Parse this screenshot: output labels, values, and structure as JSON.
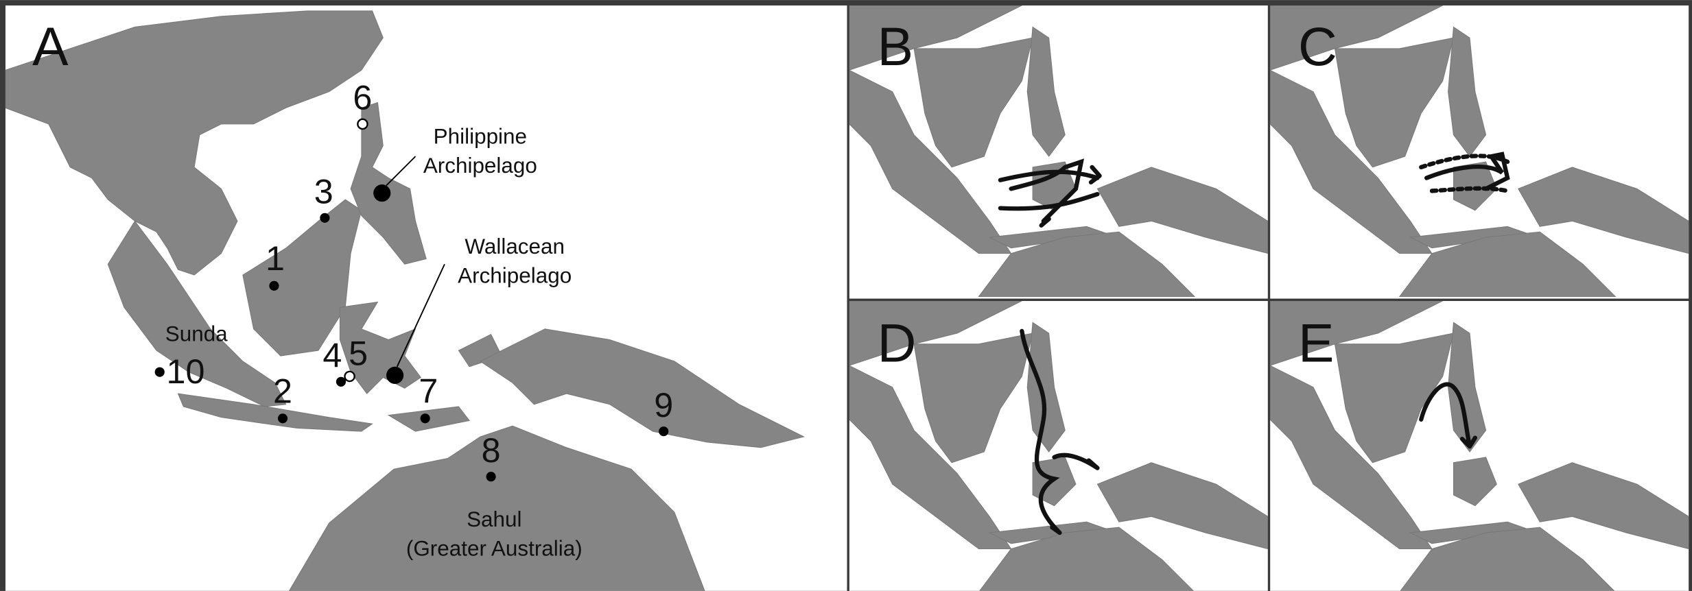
{
  "panels": [
    {
      "label": "A"
    },
    {
      "label": "B"
    },
    {
      "label": "C"
    },
    {
      "label": "D"
    },
    {
      "label": "E"
    }
  ],
  "sites": [
    {
      "label": "1"
    },
    {
      "label": "2"
    },
    {
      "label": "3"
    },
    {
      "label": "4"
    },
    {
      "label": "5"
    },
    {
      "label": "6"
    },
    {
      "label": "7"
    },
    {
      "label": "8"
    },
    {
      "label": "9"
    },
    {
      "label": "10"
    }
  ],
  "regions": {
    "philippine": [
      "Philippine",
      "Archipelago"
    ],
    "wallacean": [
      "Wallacean",
      "Archipelago"
    ],
    "sunda": "Sunda",
    "sahul": [
      "Sahul",
      "(Greater Australia)"
    ]
  }
}
